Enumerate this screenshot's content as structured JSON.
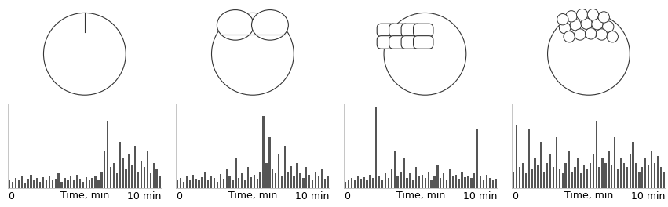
{
  "chart_data": [
    {
      "type": "bar",
      "xlabel": "Time, min",
      "x": [
        0.1,
        0.3,
        0.5,
        0.7,
        0.9,
        1.1,
        1.3,
        1.5,
        1.7,
        1.9,
        2.1,
        2.3,
        2.5,
        2.7,
        2.9,
        3.1,
        3.3,
        3.5,
        3.7,
        3.9,
        4.1,
        4.3,
        4.5,
        4.7,
        4.9,
        5.1,
        5.3,
        5.5,
        5.7,
        5.9,
        6.1,
        6.3,
        6.5,
        6.7,
        6.9,
        7.1,
        7.3,
        7.5,
        7.7,
        7.9,
        8.1,
        8.3,
        8.5,
        8.7,
        8.9,
        9.1,
        9.3,
        9.5,
        9.7,
        9.9
      ],
      "values": [
        10,
        8,
        12,
        9,
        14,
        7,
        11,
        16,
        9,
        12,
        8,
        13,
        10,
        15,
        9,
        11,
        18,
        8,
        12,
        10,
        14,
        9,
        16,
        11,
        8,
        13,
        10,
        12,
        15,
        9,
        20,
        45,
        80,
        25,
        30,
        18,
        55,
        35,
        22,
        40,
        28,
        50,
        20,
        33,
        25,
        45,
        18,
        30,
        22,
        15
      ],
      "color": "#555555",
      "xlim": [
        0,
        10
      ],
      "ylim": [
        0,
        100
      ],
      "xticks": [
        {
          "value": 0,
          "label": "0"
        },
        {
          "value": 10,
          "label": "10 min"
        }
      ],
      "tick_labels": "x"
    },
    {
      "type": "bar",
      "xlabel": "Time, min",
      "x": [
        0.1,
        0.3,
        0.5,
        0.7,
        0.9,
        1.1,
        1.3,
        1.5,
        1.7,
        1.9,
        2.1,
        2.3,
        2.5,
        2.7,
        2.9,
        3.1,
        3.3,
        3.5,
        3.7,
        3.9,
        4.1,
        4.3,
        4.5,
        4.7,
        4.9,
        5.1,
        5.3,
        5.5,
        5.7,
        5.9,
        6.1,
        6.3,
        6.5,
        6.7,
        6.9,
        7.1,
        7.3,
        7.5,
        7.7,
        7.9,
        8.1,
        8.3,
        8.5,
        8.7,
        8.9,
        9.1,
        9.3,
        9.5,
        9.7,
        9.9
      ],
      "values": [
        9,
        12,
        8,
        14,
        10,
        16,
        11,
        9,
        13,
        20,
        10,
        15,
        12,
        8,
        17,
        11,
        22,
        14,
        10,
        35,
        12,
        18,
        9,
        25,
        13,
        16,
        11,
        20,
        85,
        30,
        60,
        22,
        18,
        40,
        15,
        50,
        20,
        26,
        14,
        30,
        18,
        12,
        25,
        16,
        10,
        20,
        14,
        22,
        11,
        15
      ],
      "color": "#555555",
      "xlim": [
        0,
        10
      ],
      "ylim": [
        0,
        100
      ],
      "xticks": [
        {
          "value": 0,
          "label": "0"
        },
        {
          "value": 10,
          "label": "10 min"
        }
      ],
      "tick_labels": "x"
    },
    {
      "type": "bar",
      "xlabel": "Time, min",
      "x": [
        0.1,
        0.3,
        0.5,
        0.7,
        0.9,
        1.1,
        1.3,
        1.5,
        1.7,
        1.9,
        2.1,
        2.3,
        2.5,
        2.7,
        2.9,
        3.1,
        3.3,
        3.5,
        3.7,
        3.9,
        4.1,
        4.3,
        4.5,
        4.7,
        4.9,
        5.1,
        5.3,
        5.5,
        5.7,
        5.9,
        6.1,
        6.3,
        6.5,
        6.7,
        6.9,
        7.1,
        7.3,
        7.5,
        7.7,
        7.9,
        8.1,
        8.3,
        8.5,
        8.7,
        8.9,
        9.1,
        9.3,
        9.5,
        9.7,
        9.9
      ],
      "values": [
        8,
        10,
        12,
        9,
        14,
        11,
        13,
        10,
        16,
        12,
        95,
        14,
        10,
        18,
        12,
        22,
        45,
        15,
        20,
        35,
        12,
        18,
        10,
        25,
        14,
        16,
        12,
        20,
        10,
        15,
        28,
        12,
        18,
        10,
        22,
        14,
        16,
        11,
        20,
        13,
        15,
        12,
        18,
        70,
        14,
        10,
        16,
        12,
        9,
        11
      ],
      "color": "#555555",
      "xlim": [
        0,
        10
      ],
      "ylim": [
        0,
        100
      ],
      "xticks": [
        {
          "value": 0,
          "label": "0"
        },
        {
          "value": 10,
          "label": "10 min"
        }
      ],
      "tick_labels": "x"
    },
    {
      "type": "bar",
      "xlabel": "Time, min",
      "x": [
        0.1,
        0.3,
        0.5,
        0.7,
        0.9,
        1.1,
        1.3,
        1.5,
        1.7,
        1.9,
        2.1,
        2.3,
        2.5,
        2.7,
        2.9,
        3.1,
        3.3,
        3.5,
        3.7,
        3.9,
        4.1,
        4.3,
        4.5,
        4.7,
        4.9,
        5.1,
        5.3,
        5.5,
        5.7,
        5.9,
        6.1,
        6.3,
        6.5,
        6.7,
        6.9,
        7.1,
        7.3,
        7.5,
        7.7,
        7.9,
        8.1,
        8.3,
        8.5,
        8.7,
        8.9,
        9.1,
        9.3,
        9.5,
        9.7,
        9.9
      ],
      "values": [
        20,
        75,
        25,
        30,
        18,
        70,
        22,
        35,
        28,
        55,
        20,
        30,
        40,
        25,
        60,
        22,
        18,
        30,
        45,
        20,
        25,
        35,
        18,
        28,
        22,
        30,
        40,
        80,
        25,
        35,
        30,
        45,
        28,
        60,
        22,
        35,
        30,
        25,
        40,
        55,
        30,
        20,
        25,
        35,
        28,
        45,
        30,
        38,
        25,
        20
      ],
      "color": "#555555",
      "xlim": [
        0,
        10
      ],
      "ylim": [
        0,
        100
      ],
      "xticks": [
        {
          "value": 0,
          "label": "0"
        },
        {
          "value": 10,
          "label": "10 min"
        }
      ],
      "tick_labels": "x"
    }
  ]
}
